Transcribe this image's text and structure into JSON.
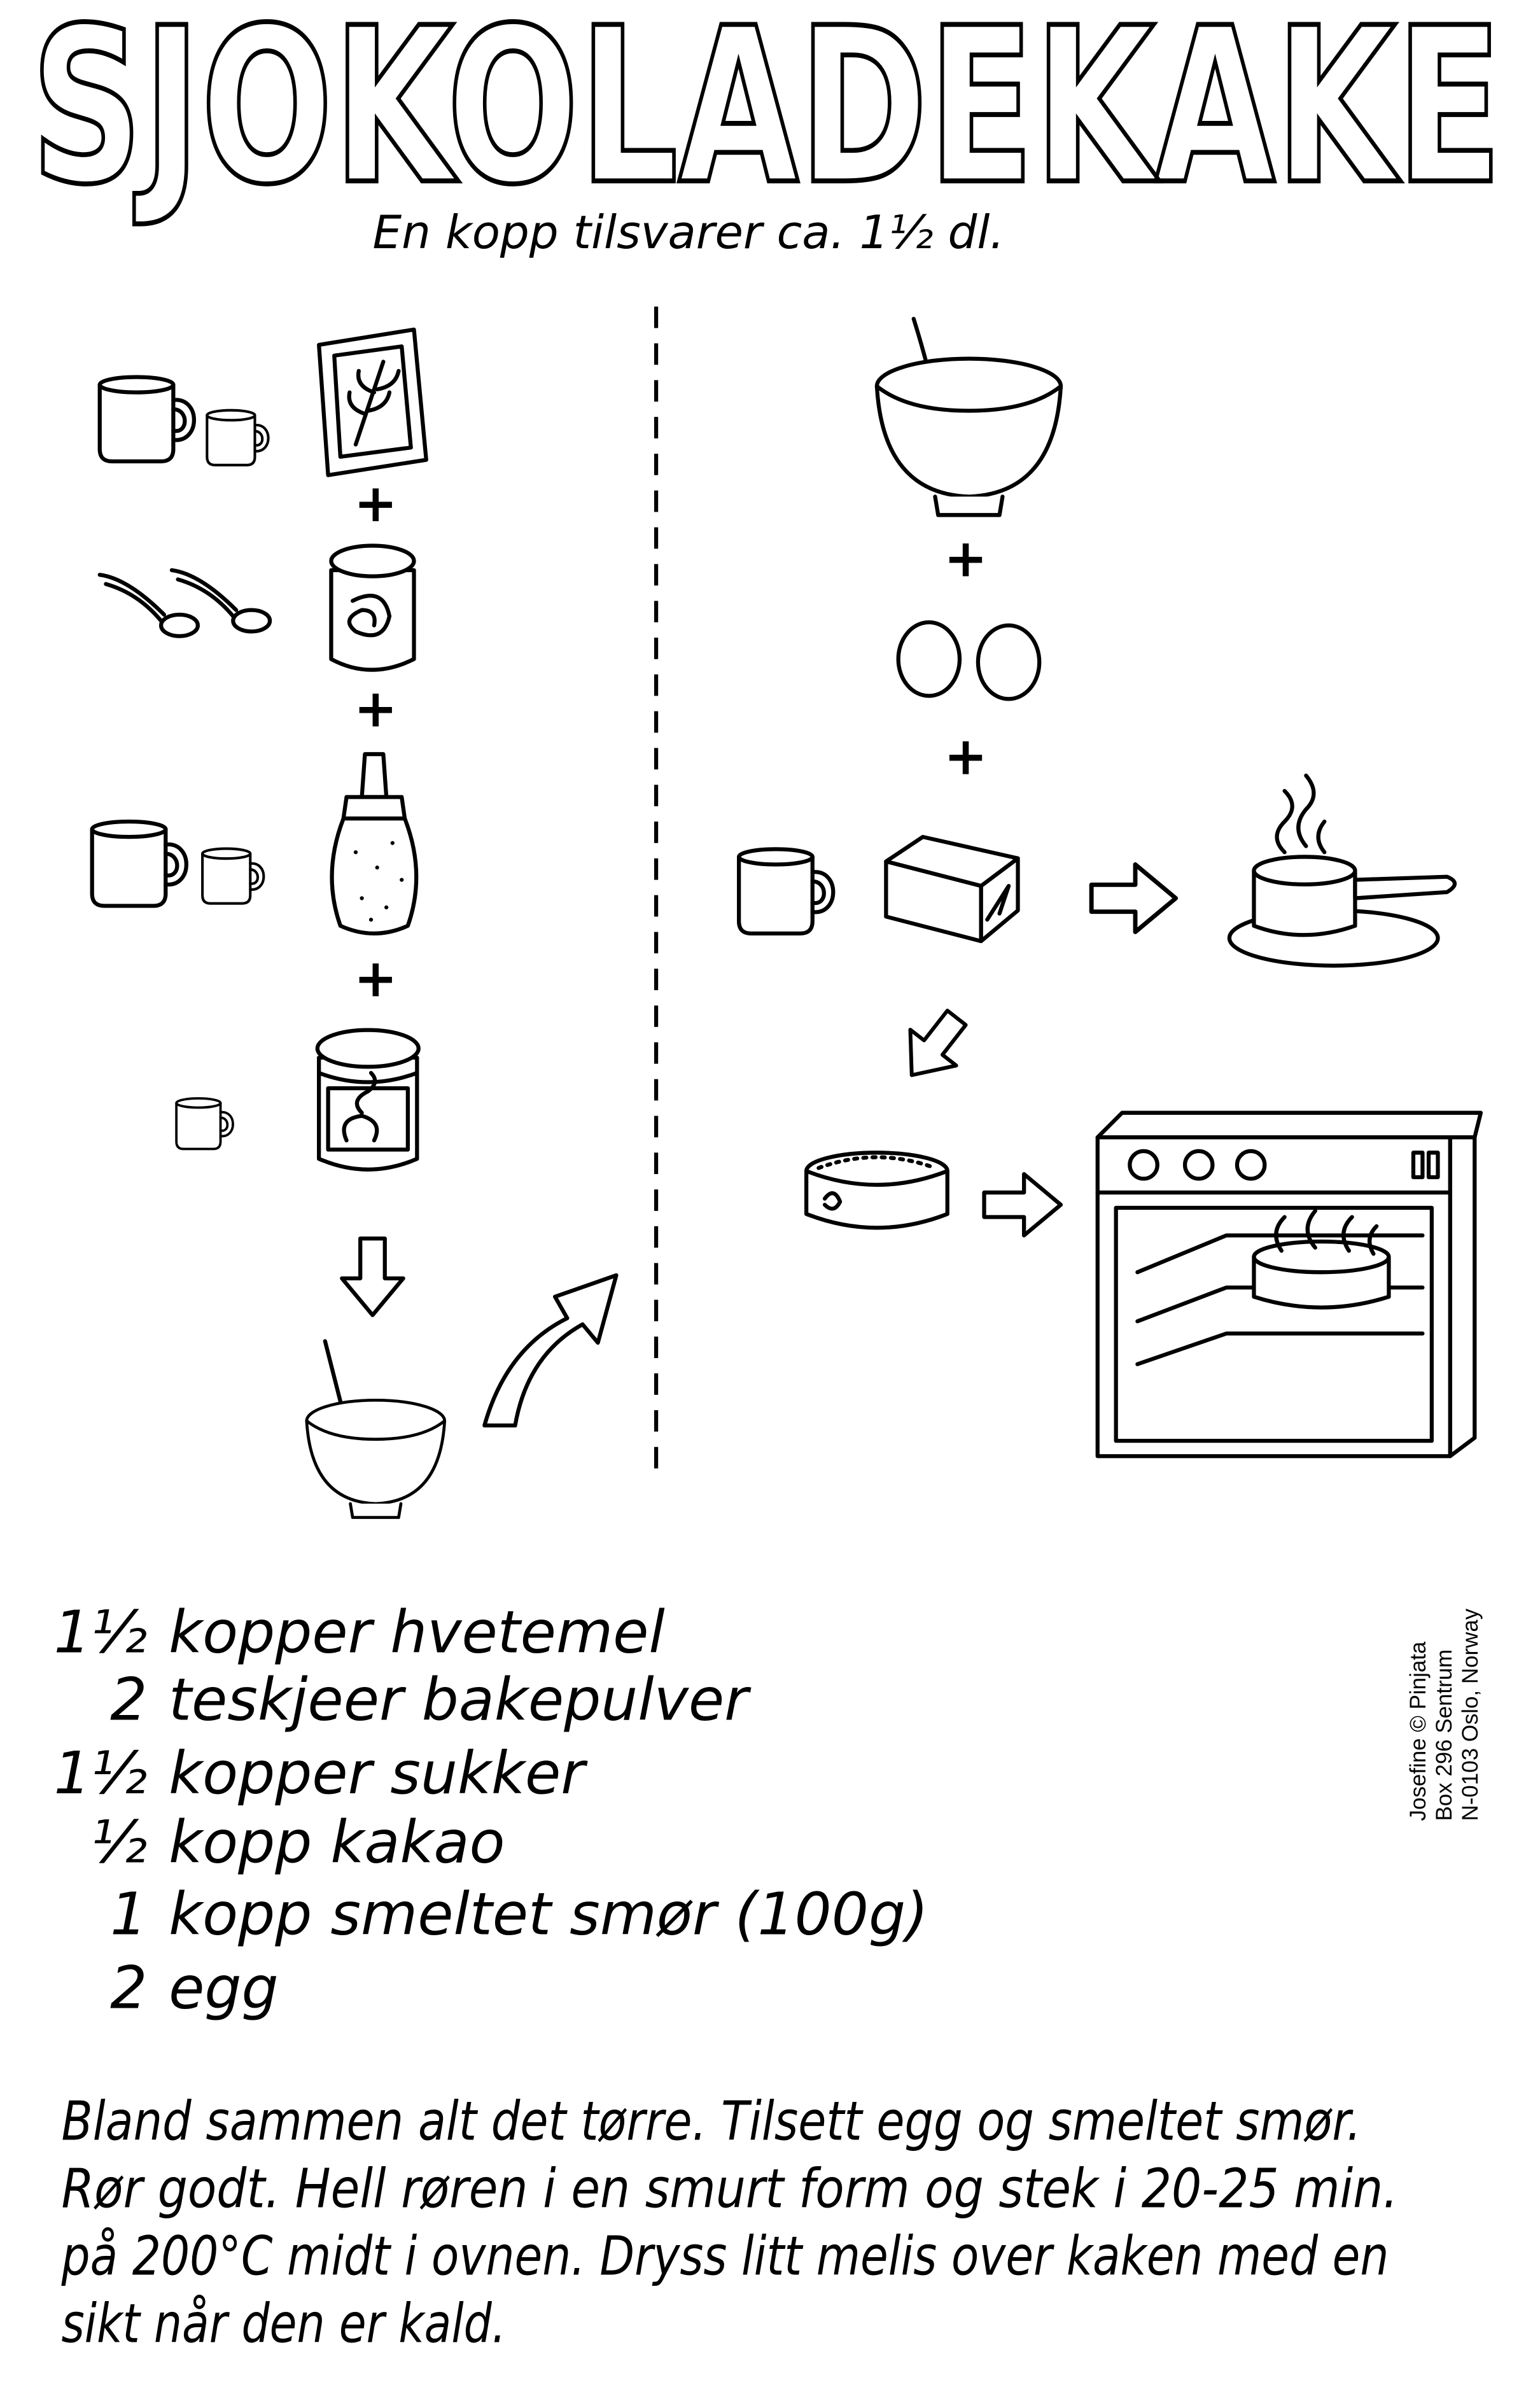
{
  "title": "SJOKOLADEKAKE",
  "subtitle": "En kopp tilsvarer ca. 1½ dl.",
  "plus": "+",
  "ingredients": [
    {
      "amount": "1½",
      "item": "kopper hvetemel"
    },
    {
      "amount": "2",
      "item": "teskjeer bakepulver"
    },
    {
      "amount": "1½",
      "item": "kopper sukker"
    },
    {
      "amount": "½",
      "item": "kopp kakao"
    },
    {
      "amount": "1",
      "item": "kopp smeltet smør (100g)"
    },
    {
      "amount": "2",
      "item": "egg"
    }
  ],
  "instructions": [
    "Bland sammen alt det tørre. Tilsett egg og smeltet smør.",
    "Rør godt. Hell røren i en smurt form og stek i 20-25 min.",
    "på 200°C midt i ovnen. Dryss litt melis over kaken med en",
    "sikt når den er kald."
  ],
  "credit": [
    "Josefine © Pinjata",
    "Box 296 Sentrum",
    "N-0103 Oslo, Norway"
  ]
}
